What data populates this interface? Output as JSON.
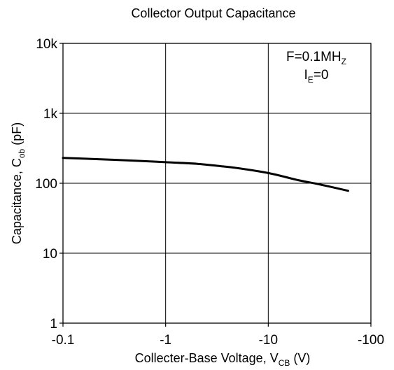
{
  "chart_data": {
    "type": "line",
    "title": "Collector Output Capacitance",
    "xlabel": {
      "main": "Collecter-Base Voltage, V",
      "sub": "CB",
      "unit": " (V)"
    },
    "ylabel": {
      "main": "Capacitance, C",
      "sub": "ob",
      "unit": " (pF)"
    },
    "x_scale": "log",
    "x_direction": "negative (magnitude increases to the right)",
    "y_scale": "log",
    "xlim": [
      -0.1,
      -100
    ],
    "ylim": [
      1,
      10000
    ],
    "x_ticks": [
      -0.1,
      -1,
      -10,
      -100
    ],
    "x_tick_labels": [
      "-0.1",
      "-1",
      "-10",
      "-100"
    ],
    "y_ticks": [
      1,
      10,
      100,
      1000,
      10000
    ],
    "y_tick_labels": [
      "1",
      "10",
      "100",
      "1k",
      "10k"
    ],
    "grid": true,
    "annotations": [
      {
        "main": "F=0.1MH",
        "sub": "Z",
        "tail": ""
      },
      {
        "main": "I",
        "sub": "E",
        "tail": "=0"
      }
    ],
    "series": [
      {
        "x": [
          -0.1,
          -0.2,
          -0.5,
          -1,
          -2,
          -3.5,
          -5,
          -10,
          -20,
          -30,
          -60
        ],
        "y": [
          230,
          222,
          210,
          200,
          190,
          175,
          165,
          140,
          110,
          98,
          78
        ]
      }
    ]
  }
}
